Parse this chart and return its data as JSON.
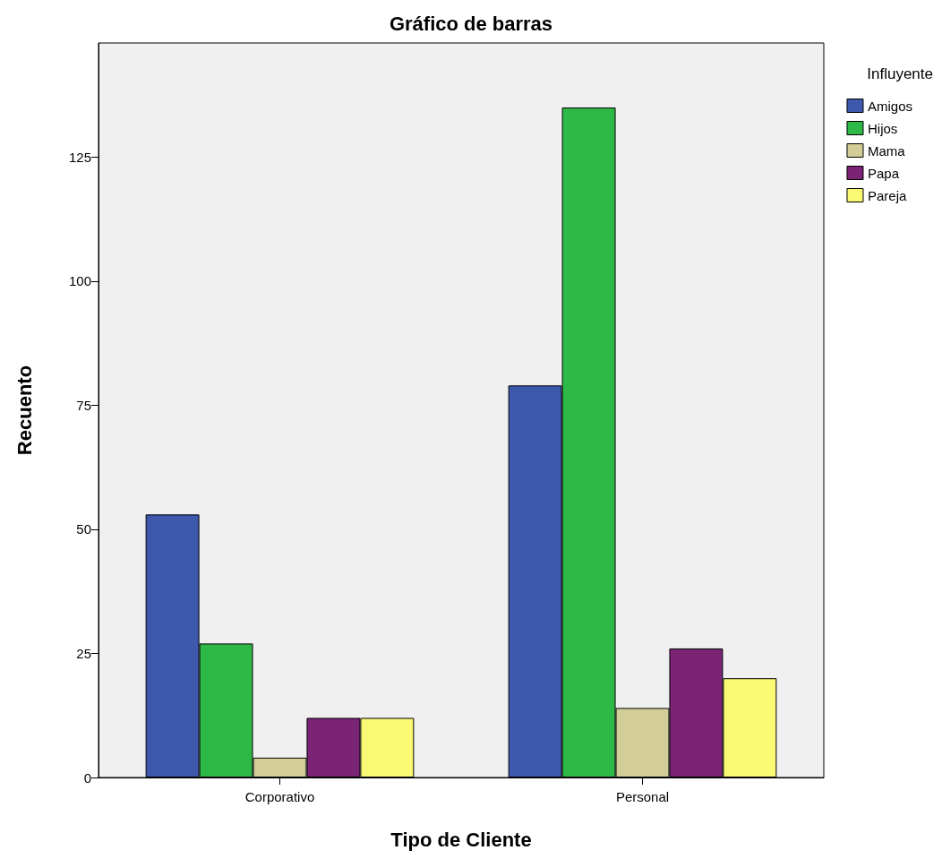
{
  "chart_data": {
    "type": "bar",
    "title": "Gráfico de barras",
    "xlabel": "Tipo de Cliente",
    "ylabel": "Recuento",
    "legend_title": "Influyente",
    "categories": [
      "Corporativo",
      "Personal"
    ],
    "series": [
      {
        "name": "Amigos",
        "color": "#3e58ac",
        "values": [
          53,
          79
        ]
      },
      {
        "name": "Hijos",
        "color": "#2eb848",
        "values": [
          27,
          135
        ]
      },
      {
        "name": "Mama",
        "color": "#d3ce97",
        "values": [
          4,
          14
        ]
      },
      {
        "name": "Papa",
        "color": "#7b2374",
        "values": [
          12,
          26
        ]
      },
      {
        "name": "Pareja",
        "color": "#fbf873",
        "values": [
          12,
          20
        ]
      }
    ],
    "ylim": [
      0,
      148
    ],
    "yticks": [
      0,
      25,
      50,
      75,
      100,
      125
    ],
    "grid": false,
    "legend": "right"
  }
}
